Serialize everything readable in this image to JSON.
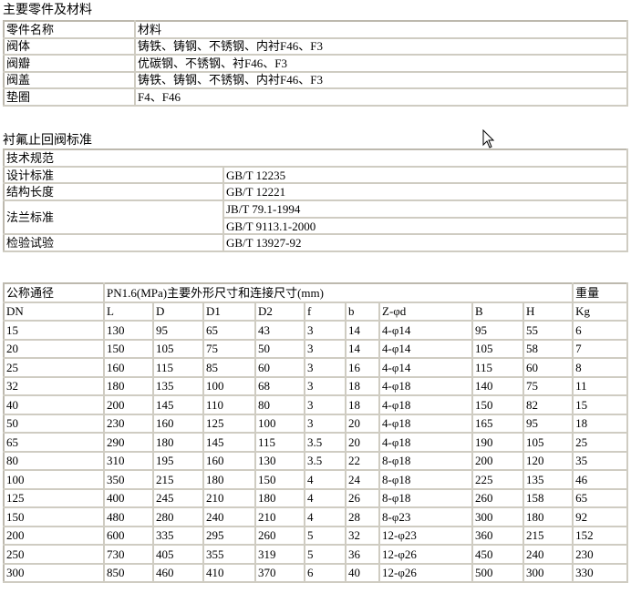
{
  "parts": {
    "title": "主要零件及材料",
    "headers": [
      "零件名称",
      "材料"
    ],
    "rows": [
      [
        "阀体",
        "铸铁、铸钢、不锈钢、内衬F46、F3"
      ],
      [
        "阀瓣",
        "优碳钢、不锈钢、衬F46、F3"
      ],
      [
        "阀盖",
        "铸铁、铸钢、不锈钢、内衬F46、F3"
      ],
      [
        "垫圈",
        "F4、F46"
      ]
    ]
  },
  "standards": {
    "title": "衬氟止回阀标准",
    "header": "技术规范",
    "design_label": "设计标准",
    "design_value": "GB/T 12235",
    "length_label": "结构长度",
    "length_value": "GB/T 12221",
    "flange_label": "法兰标准",
    "flange_value_1": "JB/T 79.1-1994",
    "flange_value_2": "GB/T 9113.1-2000",
    "test_label": "检验试验",
    "test_value": "GB/T 13927-92"
  },
  "dimensions": {
    "header_nominal": "公称通径",
    "header_main": "PN1.6(MPa)主要外形尺寸和连接尺寸(mm)",
    "header_weight": "重量",
    "columns": [
      "DN",
      "L",
      "D",
      "D1",
      "D2",
      "f",
      "b",
      "Z-φd",
      "B",
      "H",
      "Kg"
    ],
    "rows": [
      [
        "15",
        "130",
        "95",
        "65",
        "43",
        "3",
        "14",
        "4-φ14",
        "95",
        "55",
        "6"
      ],
      [
        "20",
        "150",
        "105",
        "75",
        "50",
        "3",
        "14",
        "4-φ14",
        "105",
        "58",
        "7"
      ],
      [
        "25",
        "160",
        "115",
        "85",
        "60",
        "3",
        "16",
        "4-φ14",
        "115",
        "60",
        "8"
      ],
      [
        "32",
        "180",
        "135",
        "100",
        "68",
        "3",
        "18",
        "4-φ18",
        "140",
        "75",
        "11"
      ],
      [
        "40",
        "200",
        "145",
        "110",
        "80",
        "3",
        "18",
        "4-φ18",
        "150",
        "82",
        "15"
      ],
      [
        "50",
        "230",
        "160",
        "125",
        "100",
        "3",
        "20",
        "4-φ18",
        "165",
        "95",
        "18"
      ],
      [
        "65",
        "290",
        "180",
        "145",
        "115",
        "3.5",
        "20",
        "4-φ18",
        "190",
        "105",
        "25"
      ],
      [
        "80",
        "310",
        "195",
        "160",
        "130",
        "3.5",
        "22",
        "8-φ18",
        "200",
        "120",
        "35"
      ],
      [
        "100",
        "350",
        "215",
        "180",
        "150",
        "4",
        "24",
        "8-φ18",
        "225",
        "135",
        "46"
      ],
      [
        "125",
        "400",
        "245",
        "210",
        "180",
        "4",
        "26",
        "8-φ18",
        "260",
        "158",
        "65"
      ],
      [
        "150",
        "480",
        "280",
        "240",
        "210",
        "4",
        "28",
        "8-φ23",
        "300",
        "180",
        "92"
      ],
      [
        "200",
        "600",
        "335",
        "295",
        "260",
        "5",
        "32",
        "12-φ23",
        "360",
        "215",
        "152"
      ],
      [
        "250",
        "730",
        "405",
        "355",
        "319",
        "5",
        "36",
        "12-φ26",
        "450",
        "240",
        "230"
      ],
      [
        "300",
        "850",
        "460",
        "410",
        "370",
        "6",
        "40",
        "12-φ26",
        "500",
        "300",
        "330"
      ]
    ]
  }
}
